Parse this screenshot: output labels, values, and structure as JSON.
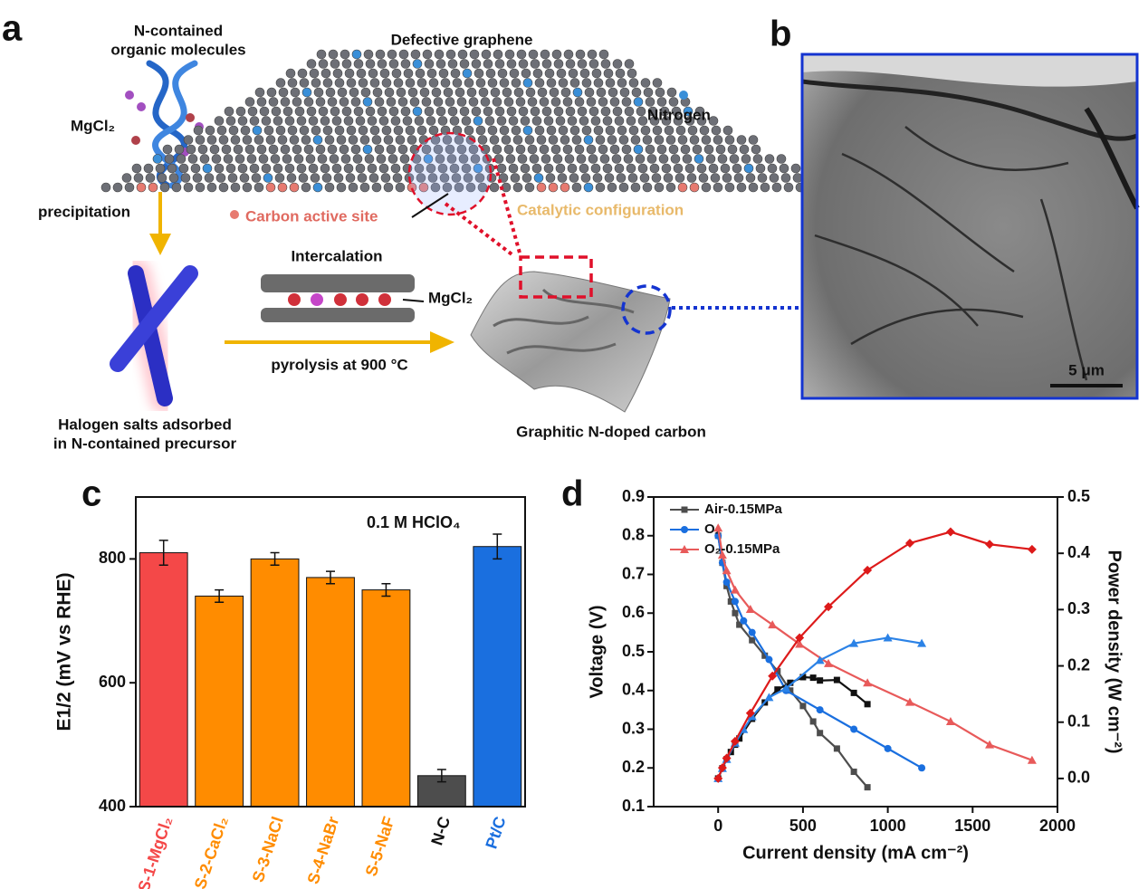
{
  "panel_a": {
    "label": "a",
    "molecules_line1": "N-contained",
    "molecules_line2": "organic molecules",
    "salt": "MgCl₂",
    "step1": "precipitation",
    "precursor_line1": "Halogen salts adsorbed",
    "precursor_line2": "in N-contained precursor",
    "graphene": "Defective graphene",
    "nitrogen": "Nitrogen",
    "active_site": "Carbon  active site",
    "configuration": "Catalytic configuration",
    "intercalation": "Intercalation",
    "intercalated_salt": "MgCl₂",
    "step2": "pyrolysis at 900 °C",
    "product": "Graphitic N-doped carbon"
  },
  "panel_b": {
    "label": "b",
    "scale_bar": "5 μm"
  },
  "chart_data": [
    {
      "type": "bar",
      "panel_label": "c",
      "ylabel": "E1/2 (mV vs RHE)",
      "annotation": "0.1 M HClO₄",
      "categories": [
        "S-1-MgCl₂",
        "S-2-CaCl₂",
        "S-3-NaCl",
        "S-4-NaBr",
        "S-5-NaF",
        "N-C",
        "Pt/C"
      ],
      "values": [
        810,
        740,
        800,
        770,
        750,
        450,
        820
      ],
      "errors": [
        20,
        10,
        10,
        10,
        10,
        10,
        20
      ],
      "colors": [
        "#f44848",
        "#ff8c00",
        "#ff8c00",
        "#ff8c00",
        "#ff8c00",
        "#4d4d4d",
        "#1a6fdf"
      ],
      "ylim": [
        400,
        900
      ],
      "yticks": [
        400,
        600,
        800
      ]
    },
    {
      "type": "line",
      "panel_label": "d",
      "xlabel": "Current density (mA cm⁻²)",
      "ylabel": "Voltage (V)",
      "y2label": "Power density (W cm⁻²)",
      "xlim": [
        -380,
        2000
      ],
      "xticks": [
        0,
        500,
        1000,
        1500,
        2000
      ],
      "ylim": [
        0.1,
        0.9
      ],
      "yticks": [
        0.1,
        0.2,
        0.3,
        0.4,
        0.5,
        0.6,
        0.7,
        0.8,
        0.9
      ],
      "y2lim": [
        -0.05,
        0.5
      ],
      "y2ticks": [
        {
          "value": 0,
          "label": "0.0"
        },
        0.1,
        0.2,
        0.3,
        0.4,
        0.5
      ],
      "legend": "upper left",
      "series": [
        {
          "name": "Air-0.15MPa",
          "color": "#4d4d4d",
          "marker": "square",
          "axis": "y",
          "x": [
            0,
            25,
            50,
            75,
            100,
            125,
            200,
            275,
            350,
            425,
            500,
            560,
            600,
            700,
            800,
            880
          ],
          "values": [
            0.8,
            0.73,
            0.67,
            0.63,
            0.6,
            0.57,
            0.53,
            0.49,
            0.45,
            0.4,
            0.36,
            0.32,
            0.29,
            0.25,
            0.19,
            0.15
          ]
        },
        {
          "name": "O₂",
          "color": "#1a6fdf",
          "marker": "circle",
          "axis": "y",
          "x": [
            0,
            25,
            50,
            100,
            150,
            200,
            300,
            400,
            600,
            800,
            1000,
            1200
          ],
          "values": [
            0.8,
            0.73,
            0.68,
            0.63,
            0.58,
            0.55,
            0.48,
            0.4,
            0.35,
            0.3,
            0.25,
            0.2
          ]
        },
        {
          "name": "O₂-0.15MPa",
          "color": "#e85a5a",
          "marker": "triangle",
          "axis": "y",
          "x": [
            0,
            25,
            50,
            100,
            190,
            320,
            480,
            650,
            880,
            1130,
            1370,
            1600,
            1850
          ],
          "values": [
            0.82,
            0.75,
            0.71,
            0.66,
            0.61,
            0.57,
            0.52,
            0.47,
            0.42,
            0.37,
            0.32,
            0.26,
            0.22
          ]
        },
        {
          "color": "#111111",
          "marker": "square",
          "axis": "y2",
          "x": [
            0,
            25,
            50,
            75,
            100,
            125,
            200,
            275,
            350,
            425,
            500,
            560,
            600,
            700,
            800,
            880
          ],
          "values": [
            0,
            0.018,
            0.034,
            0.047,
            0.06,
            0.071,
            0.106,
            0.135,
            0.158,
            0.17,
            0.18,
            0.179,
            0.174,
            0.175,
            0.152,
            0.132
          ]
        },
        {
          "color": "#2b82e6",
          "marker": "triangle",
          "axis": "y2",
          "x": [
            0,
            25,
            50,
            100,
            150,
            200,
            300,
            400,
            600,
            800,
            1000,
            1200
          ],
          "values": [
            0,
            0.018,
            0.034,
            0.063,
            0.087,
            0.11,
            0.144,
            0.16,
            0.21,
            0.24,
            0.25,
            0.24
          ]
        },
        {
          "color": "#dd1a1a",
          "marker": "diamond",
          "axis": "y2",
          "x": [
            0,
            25,
            50,
            100,
            190,
            320,
            480,
            650,
            880,
            1130,
            1370,
            1600,
            1850
          ],
          "values": [
            0,
            0.019,
            0.036,
            0.066,
            0.116,
            0.182,
            0.25,
            0.305,
            0.37,
            0.418,
            0.438,
            0.416,
            0.407
          ]
        }
      ]
    }
  ]
}
